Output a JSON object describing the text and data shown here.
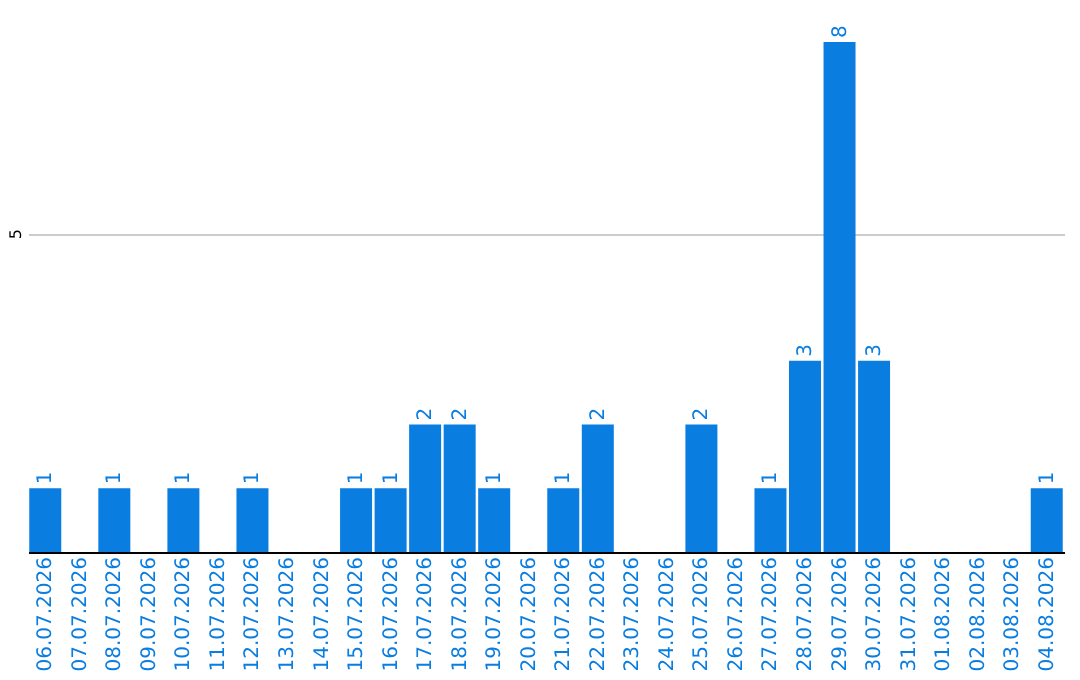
{
  "chart_data": {
    "type": "bar",
    "categories": [
      "06.07.2026",
      "07.07.2026",
      "08.07.2026",
      "09.07.2026",
      "10.07.2026",
      "11.07.2026",
      "12.07.2026",
      "13.07.2026",
      "14.07.2026",
      "15.07.2026",
      "16.07.2026",
      "17.07.2026",
      "18.07.2026",
      "19.07.2026",
      "20.07.2026",
      "21.07.2026",
      "22.07.2026",
      "23.07.2026",
      "24.07.2026",
      "25.07.2026",
      "26.07.2026",
      "27.07.2026",
      "28.07.2026",
      "29.07.2026",
      "30.07.2026",
      "31.07.2026",
      "01.08.2026",
      "02.08.2026",
      "03.08.2026",
      "04.08.2026"
    ],
    "values": [
      1,
      0,
      1,
      0,
      1,
      0,
      1,
      0,
      0,
      1,
      1,
      2,
      2,
      1,
      0,
      1,
      2,
      0,
      0,
      2,
      0,
      1,
      3,
      8,
      3,
      0,
      0,
      0,
      0,
      1
    ],
    "value_labels": [
      "1",
      null,
      "1",
      null,
      "1",
      null,
      "1",
      null,
      null,
      "1",
      "1",
      "2",
      "2",
      "1",
      null,
      "1",
      "2",
      null,
      null,
      "2",
      null,
      "1",
      "3",
      "8",
      "3",
      null,
      null,
      null,
      null,
      "1"
    ],
    "color": "#0a7de0",
    "ylim": [
      0,
      8
    ],
    "yticks": [
      5
    ],
    "grid": "y"
  }
}
